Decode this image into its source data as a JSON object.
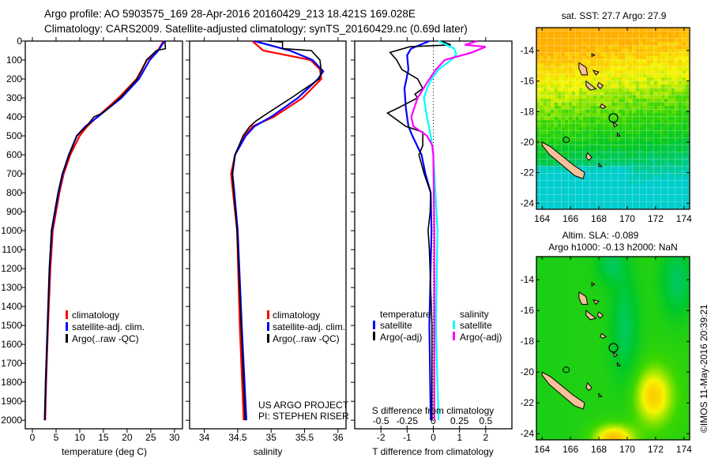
{
  "header": {
    "title_line1": "Argo profile: AO 5903575_169 28-Apr-2016 20160429_213 18.421S 169.028E",
    "title_line2": "Climatology: CARS2009. Satellite-adjusted climatology: synTS_20160429.nc (0.69d later)"
  },
  "credits": {
    "project": "US ARGO PROJECT",
    "pi": "PI: STEPHEN RISER",
    "copyright": "©IMOS 11-May-2016 20:39:21"
  },
  "colors": {
    "climatology": "#ff0000",
    "satellite": "#0000ff",
    "argo": "#000000",
    "sal_satellite": "#00ffff",
    "sal_argo": "#ff00ff"
  },
  "chart_data": [
    {
      "type": "line",
      "id": "temperature",
      "xlabel": "temperature (deg C)",
      "ylabel": "",
      "xlim": [
        -1.5,
        31.7
      ],
      "ylim": [
        2045,
        0
      ],
      "xticks": [
        "0",
        "5",
        "10",
        "15",
        "20",
        "25",
        "30"
      ],
      "xtick_values": [
        0,
        5,
        10,
        15,
        20,
        25,
        30
      ],
      "yticks": [
        "0",
        "100",
        "200",
        "300",
        "400",
        "500",
        "600",
        "700",
        "800",
        "900",
        "1000",
        "1100",
        "1200",
        "1300",
        "1400",
        "1500",
        "1600",
        "1700",
        "1800",
        "1900",
        "2000"
      ],
      "ytick_values": [
        0,
        100,
        200,
        300,
        400,
        500,
        600,
        700,
        800,
        900,
        1000,
        1100,
        1200,
        1300,
        1400,
        1500,
        1600,
        1700,
        1800,
        1900,
        2000
      ],
      "legend": [
        "climatology",
        "satellite-adj. clim.",
        "Argo(..raw -QC)"
      ],
      "legend_position": "lower-center",
      "series": [
        {
          "name": "climatology",
          "color": "#ff0000",
          "depth": [
            0,
            50,
            100,
            200,
            300,
            400,
            450,
            500,
            600,
            700,
            800,
            1000,
            1200,
            1500,
            1800,
            2000
          ],
          "values": [
            27.7,
            26.5,
            24.2,
            22.0,
            18.2,
            13.7,
            11.6,
            10.0,
            8.0,
            6.6,
            5.7,
            4.3,
            3.8,
            3.3,
            2.9,
            2.7
          ]
        },
        {
          "name": "satellite-adj. clim.",
          "color": "#0000ff",
          "depth": [
            0,
            50,
            100,
            200,
            300,
            400,
            450,
            500,
            600,
            700,
            800,
            1000,
            1200,
            1500,
            1800,
            2000
          ],
          "values": [
            27.9,
            26.6,
            24.8,
            22.5,
            18.8,
            13.8,
            11.2,
            9.4,
            7.7,
            6.4,
            5.5,
            4.1,
            3.6,
            3.2,
            2.8,
            2.6
          ]
        },
        {
          "name": "Argo(..raw -QC)",
          "color": "#000000",
          "depth": [
            0,
            40,
            50,
            100,
            150,
            200,
            300,
            380,
            400,
            450,
            500,
            600,
            700,
            800,
            1000,
            1200,
            1500,
            1800,
            2000
          ],
          "values": [
            28.0,
            28.1,
            26.2,
            24.1,
            23.2,
            22.1,
            18.5,
            14.8,
            13.0,
            11.4,
            9.4,
            7.8,
            6.3,
            5.4,
            4.0,
            3.6,
            3.2,
            2.8,
            2.6
          ]
        }
      ]
    },
    {
      "type": "line",
      "id": "salinity",
      "xlabel": "salinity",
      "xlim": [
        33.78,
        36.12
      ],
      "ylim": [
        2045,
        0
      ],
      "xticks": [
        "34",
        "34.5",
        "35",
        "35.5",
        "36"
      ],
      "xtick_values": [
        34,
        34.5,
        35,
        35.5,
        36
      ],
      "legend": [
        "climatology",
        "satellite-adj. clim.",
        "Argo(..raw -QC)"
      ],
      "legend_position": "lower-center",
      "series": [
        {
          "name": "climatology",
          "color": "#ff0000",
          "depth": [
            0,
            50,
            100,
            150,
            200,
            300,
            400,
            450,
            500,
            600,
            700,
            800,
            1000,
            1500,
            2000
          ],
          "values": [
            34.72,
            34.88,
            35.59,
            35.73,
            35.75,
            35.47,
            35.04,
            34.72,
            34.6,
            34.46,
            34.4,
            34.43,
            34.49,
            34.53,
            34.59
          ]
        },
        {
          "name": "satellite-adj. clim.",
          "color": "#0000ff",
          "depth": [
            0,
            50,
            100,
            160,
            200,
            300,
            400,
            450,
            500,
            600,
            700,
            800,
            1000,
            1500,
            2000
          ],
          "values": [
            34.75,
            35.28,
            35.62,
            35.78,
            35.7,
            35.4,
            35.0,
            34.75,
            34.62,
            34.46,
            34.42,
            34.45,
            34.5,
            34.56,
            34.63
          ]
        },
        {
          "name": "Argo(..raw -QC)",
          "color": "#000000",
          "depth": [
            0,
            5,
            40,
            50,
            100,
            160,
            200,
            300,
            380,
            420,
            450,
            500,
            600,
            700,
            800,
            1000,
            1500,
            2000
          ],
          "values": [
            34.95,
            35.17,
            35.17,
            35.6,
            35.73,
            35.75,
            35.72,
            35.3,
            34.95,
            34.78,
            34.68,
            34.58,
            34.46,
            34.42,
            34.44,
            34.49,
            34.55,
            34.61
          ]
        }
      ]
    },
    {
      "type": "line",
      "id": "difference",
      "xlabel": "T difference from climatology",
      "top_xlabel": "S difference from climatology",
      "xlim": [
        -3,
        3
      ],
      "ylim": [
        2045,
        0
      ],
      "xticks": [
        "-2",
        "-1",
        "0",
        "1",
        "2"
      ],
      "xtick_values": [
        -2,
        -1,
        0,
        1,
        2
      ],
      "s_xticks": [
        "-0.5",
        "-0.25",
        "0",
        "0.25",
        "0.5"
      ],
      "s_xtick_values": [
        -0.5,
        -0.25,
        0,
        0.25,
        0.5
      ],
      "legend_headers": [
        "temperature",
        "salinity"
      ],
      "legend": [
        "satellite",
        "Argo(-adj)",
        "satellite",
        "Argo(-adj)"
      ],
      "legend_position": "lower-center",
      "series": [
        {
          "name": "T satellite",
          "quantity": "T",
          "color": "#0000ff",
          "depth": [
            0,
            40,
            75,
            150,
            250,
            350,
            400,
            450,
            500,
            600,
            700,
            800,
            1000,
            1500,
            2000
          ],
          "values": [
            -0.15,
            -0.85,
            -1.0,
            -0.95,
            -1.1,
            -1.05,
            -1.0,
            -0.95,
            -0.8,
            -0.45,
            -0.3,
            -0.1,
            -0.07,
            -0.15,
            -0.1
          ]
        },
        {
          "name": "T Argo(-adj)",
          "quantity": "T",
          "color": "#000000",
          "depth": [
            0,
            20,
            30,
            60,
            100,
            150,
            200,
            250,
            280,
            300,
            350,
            380,
            450,
            480,
            550,
            600,
            700,
            800,
            900,
            1000,
            1100,
            1500,
            2000
          ],
          "values": [
            0.3,
            0.67,
            -0.9,
            -1.65,
            -1.4,
            -1.2,
            -0.6,
            -0.4,
            -0.7,
            -0.6,
            -1.3,
            -1.75,
            -1.05,
            -0.4,
            -0.4,
            -0.55,
            -0.35,
            -0.1,
            -0.12,
            -0.2,
            -0.15,
            -0.05,
            -0.05
          ]
        },
        {
          "name": "S satellite",
          "quantity": "S",
          "color": "#00ffff",
          "depth": [
            0,
            40,
            70,
            100,
            150,
            200,
            250,
            300,
            350,
            400,
            500,
            600,
            700,
            1000,
            1500,
            2000
          ],
          "values": [
            0.05,
            0.2,
            0.22,
            0.17,
            0.05,
            -0.015,
            -0.06,
            -0.09,
            -0.075,
            -0.06,
            -0.025,
            0.0,
            0.01,
            0.04,
            0.025,
            0.05
          ]
        },
        {
          "name": "S Argo(-adj)",
          "quantity": "S",
          "color": "#ff00ff",
          "depth": [
            0,
            20,
            30,
            60,
            100,
            150,
            220,
            300,
            350,
            400,
            450,
            500,
            550,
            600,
            1000,
            1500,
            2000
          ],
          "values": [
            0.42,
            0.3,
            0.5,
            0.37,
            0.11,
            0.025,
            -0.06,
            -0.15,
            -0.18,
            -0.21,
            -0.19,
            -0.06,
            -0.01,
            0.0,
            0.01,
            0.01,
            0.01
          ]
        }
      ]
    },
    {
      "type": "heatmap",
      "id": "sst_map",
      "title": "sat. SST: 27.7 Argo: 27.9",
      "xlim": [
        163.6,
        174.4
      ],
      "ylim": [
        -24.4,
        -12.5
      ],
      "xticks": [
        "164",
        "166",
        "168",
        "170",
        "172",
        "174"
      ],
      "xtick_values": [
        164,
        166,
        168,
        170,
        172,
        174
      ],
      "yticks": [
        "-14",
        "-16",
        "-18",
        "-20",
        "-22",
        "-24"
      ],
      "ytick_values": [
        -14,
        -16,
        -18,
        -20,
        -22,
        -24
      ],
      "argo_position": {
        "lon": 169.028,
        "lat": -18.421
      }
    },
    {
      "type": "heatmap",
      "id": "sla_map",
      "title_line1": "Altim. SLA: -0.089",
      "title_line2": "Argo h1000: -0.13 h2000: NaN",
      "xlim": [
        163.6,
        174.4
      ],
      "ylim": [
        -24.4,
        -12.5
      ],
      "xticks": [
        "164",
        "166",
        "168",
        "170",
        "172",
        "174"
      ],
      "xtick_values": [
        164,
        166,
        168,
        170,
        172,
        174
      ],
      "yticks": [
        "-14",
        "-16",
        "-18",
        "-20",
        "-22",
        "-24"
      ],
      "ytick_values": [
        -14,
        -16,
        -18,
        -20,
        -22,
        -24
      ],
      "argo_position": {
        "lon": 169.028,
        "lat": -18.421
      }
    }
  ]
}
